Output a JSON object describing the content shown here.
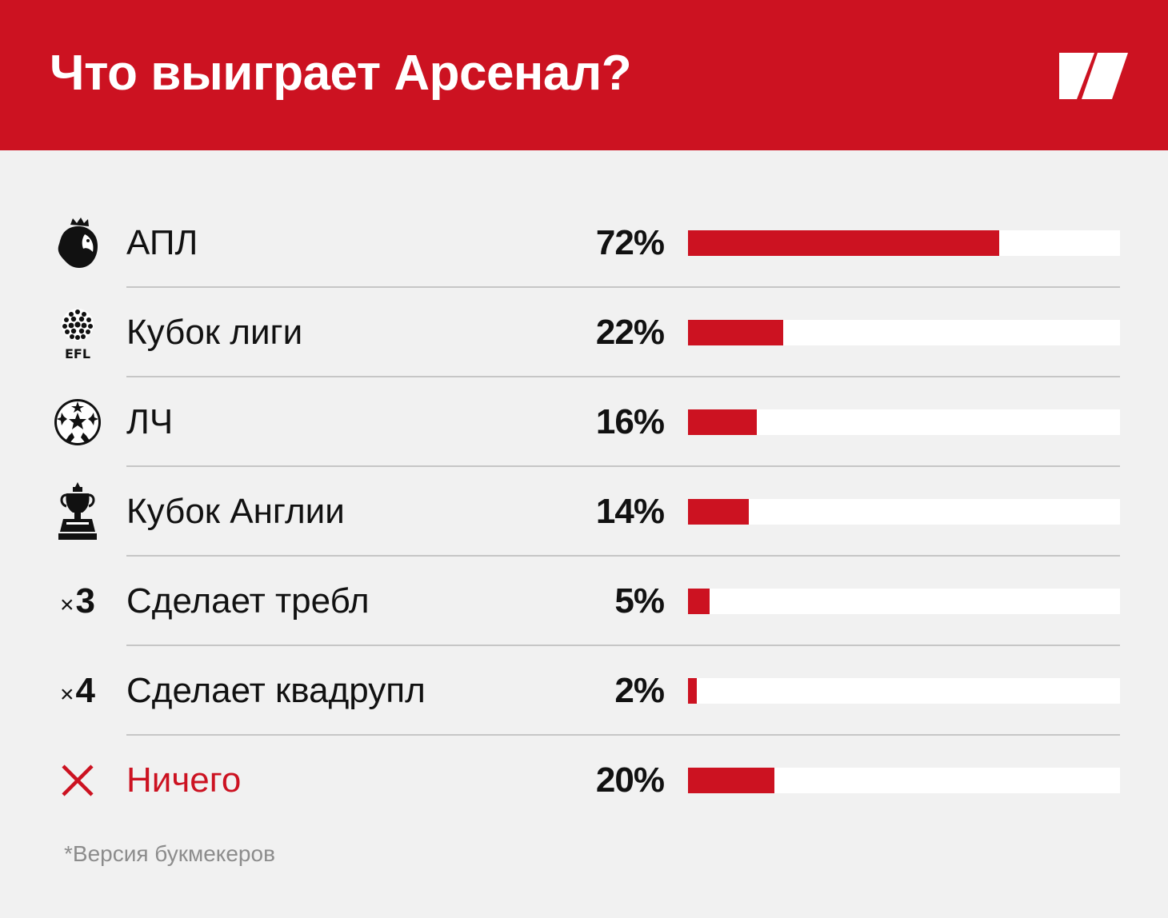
{
  "header": {
    "title": "Что выиграет Арсенал?",
    "background_color": "#cc1221",
    "logo_icon": "slash-brand-logo-icon"
  },
  "chart_data": {
    "type": "bar",
    "orientation": "horizontal",
    "categories": [
      "АПЛ",
      "Кубок лиги",
      "ЛЧ",
      "Кубок Англии",
      "Сделает требл",
      "Сделает квадрупл",
      "Ничего"
    ],
    "values": [
      72,
      22,
      16,
      14,
      5,
      2,
      20
    ],
    "value_labels": [
      "72%",
      "22%",
      "16%",
      "14%",
      "5%",
      "2%",
      "20%"
    ],
    "xlim": [
      0,
      100
    ],
    "bar_color": "#cc1221",
    "track_color": "#ffffff"
  },
  "rows": [
    {
      "label": "АПЛ",
      "value_label": "72%",
      "icon": "premier-league-lion-icon"
    },
    {
      "label": "Кубок лиги",
      "value_label": "22%",
      "icon": "efl-ball-icon",
      "icon_text": "EFL"
    },
    {
      "label": "ЛЧ",
      "value_label": "16%",
      "icon": "champions-league-starball-icon"
    },
    {
      "label": "Кубок Англии",
      "value_label": "14%",
      "icon": "fa-cup-trophy-icon"
    },
    {
      "label": "Сделает требл",
      "value_label": "5%",
      "icon": "multiplier-icon",
      "multiplier_sign": "×",
      "multiplier_value": "3"
    },
    {
      "label": "Сделает квадрупл",
      "value_label": "2%",
      "icon": "multiplier-icon",
      "multiplier_sign": "×",
      "multiplier_value": "4"
    },
    {
      "label": "Ничего",
      "value_label": "20%",
      "icon": "cross-icon",
      "label_color": "#cc1221"
    }
  ],
  "footnote": "*Версия букмекеров"
}
